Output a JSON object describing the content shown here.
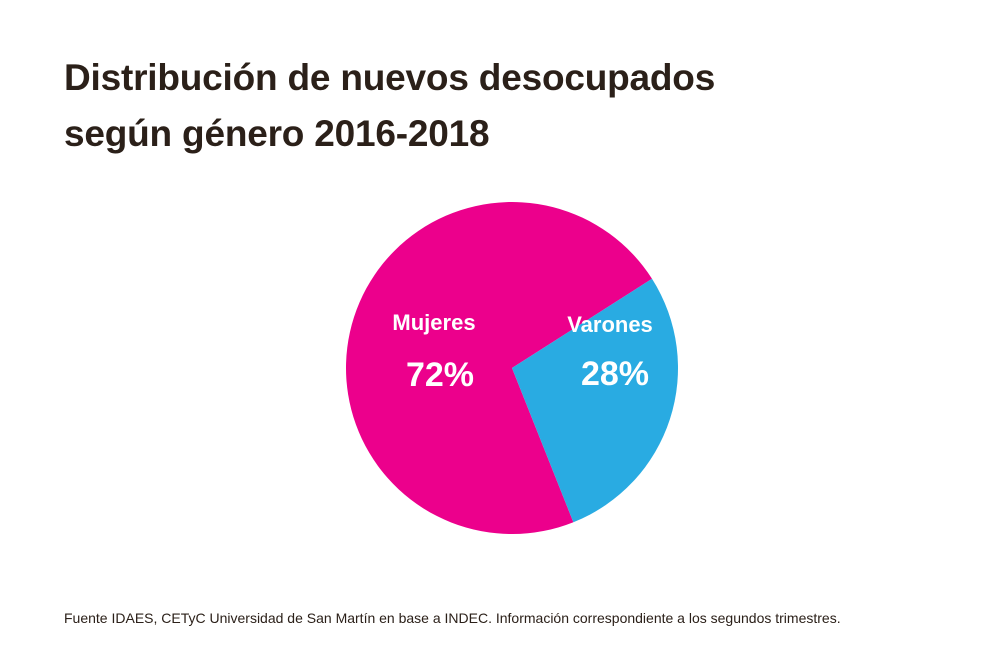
{
  "chart_data": {
    "type": "pie",
    "title_lines": [
      "Distribución de nuevos desocupados",
      "según género 2016-2018"
    ],
    "slices": [
      {
        "label": "Mujeres",
        "value": 72,
        "value_label": "72%",
        "color": "#ec008c"
      },
      {
        "label": "Varones",
        "value": 28,
        "value_label": "28%",
        "color": "#29abe2"
      }
    ]
  },
  "source": "Fuente IDAES, CETyC Universidad de  San Martín en base a INDEC. Información correspondiente a los segundos trimestres.",
  "colors": {
    "title": "#2b2019",
    "background": "#ffffff"
  }
}
